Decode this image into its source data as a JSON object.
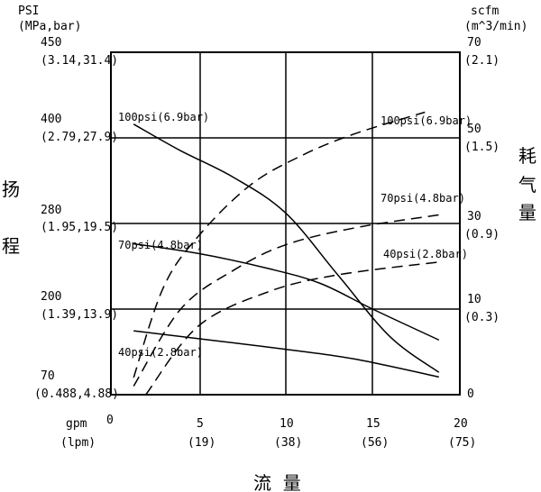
{
  "chart_data": {
    "type": "line",
    "left_axis": {
      "unit_line1": "PSI",
      "unit_line2": "(MPa,bar)",
      "title_chars": [
        "扬",
        "程"
      ],
      "ticks": [
        {
          "v": 450,
          "main": "450",
          "sub": "(3.14,31.4)"
        },
        {
          "v": 400,
          "main": "400",
          "sub": "(2.79,27.9)"
        },
        {
          "v": 280,
          "main": "280",
          "sub": "(1.95,19.5)"
        },
        {
          "v": 200,
          "main": "200",
          "sub": "(1.39,13.9)"
        },
        {
          "v": 70,
          "main": "70",
          "sub": "(0.488,4.88)"
        }
      ]
    },
    "right_axis": {
      "unit_line1": "scfm",
      "unit_line2": "(m^3/min)",
      "title_chars": [
        "耗",
        "气",
        "量"
      ],
      "ticks": [
        {
          "v": 70,
          "main": "70",
          "sub": "(2.1)"
        },
        {
          "v": 50,
          "main": "50",
          "sub": "(1.5)"
        },
        {
          "v": 30,
          "main": "30",
          "sub": "(0.9)"
        },
        {
          "v": 10,
          "main": "10",
          "sub": "(0.3)"
        },
        {
          "v": 0,
          "main": "0",
          "sub": ""
        }
      ]
    },
    "x_axis": {
      "unit_line1": "gpm",
      "unit_line2": "(lpm)",
      "title": "流  量",
      "ticks": [
        {
          "v": 0,
          "main": "0",
          "sub": ""
        },
        {
          "v": 5,
          "main": "5",
          "sub": "(19)"
        },
        {
          "v": 10,
          "main": "10",
          "sub": "(38)"
        },
        {
          "v": 15,
          "main": "15",
          "sub": "(56)"
        },
        {
          "v": 20,
          "main": "20",
          "sub": "(75)"
        }
      ],
      "xlim": [
        0,
        20
      ]
    },
    "series": [
      {
        "name": "100psi(6.9bar)",
        "kind": "head",
        "style": "solid",
        "points": [
          [
            1.3,
            408
          ],
          [
            4,
            382
          ],
          [
            7,
            345
          ],
          [
            10,
            295
          ],
          [
            13,
            232
          ],
          [
            16,
            158
          ],
          [
            18.8,
            104
          ]
        ]
      },
      {
        "name": "70psi(4.8bar)",
        "kind": "head",
        "style": "solid",
        "points": [
          [
            1.3,
            261
          ],
          [
            5,
            252
          ],
          [
            9,
            238
          ],
          [
            12,
            224
          ],
          [
            15,
            200
          ],
          [
            18.8,
            153
          ]
        ]
      },
      {
        "name": "40psi(2.8bar)",
        "kind": "head",
        "style": "solid",
        "points": [
          [
            1.3,
            167
          ],
          [
            6,
            152
          ],
          [
            10,
            139
          ],
          [
            14,
            124
          ],
          [
            18.8,
            97
          ]
        ]
      },
      {
        "name": "100psi(6.9bar)",
        "kind": "air",
        "style": "dashed",
        "points": [
          [
            1.3,
            2
          ],
          [
            3,
            15
          ],
          [
            5,
            27
          ],
          [
            8,
            39
          ],
          [
            11,
            46
          ],
          [
            14,
            51
          ],
          [
            18,
            56
          ]
        ]
      },
      {
        "name": "70psi(4.8bar)",
        "kind": "air",
        "style": "dashed",
        "points": [
          [
            1.3,
            1
          ],
          [
            4,
            10
          ],
          [
            7,
            19
          ],
          [
            10,
            25
          ],
          [
            14,
            29
          ],
          [
            18.8,
            32
          ]
        ]
      },
      {
        "name": "40psi(2.8bar)",
        "kind": "air",
        "style": "dashed",
        "points": [
          [
            2,
            0
          ],
          [
            5,
            8
          ],
          [
            9,
            14
          ],
          [
            13,
            18
          ],
          [
            18.8,
            21
          ]
        ]
      }
    ],
    "curve_labels": {
      "head_100": "100psi(6.9bar)",
      "head_70": "70psi(4.8bar)",
      "head_40": "40psi(2.8bar)",
      "air_100": "100psi(6.9bar)",
      "air_70": "70psi(4.8bar)",
      "air_40": "40psi(2.8bar)"
    },
    "grid": true
  }
}
